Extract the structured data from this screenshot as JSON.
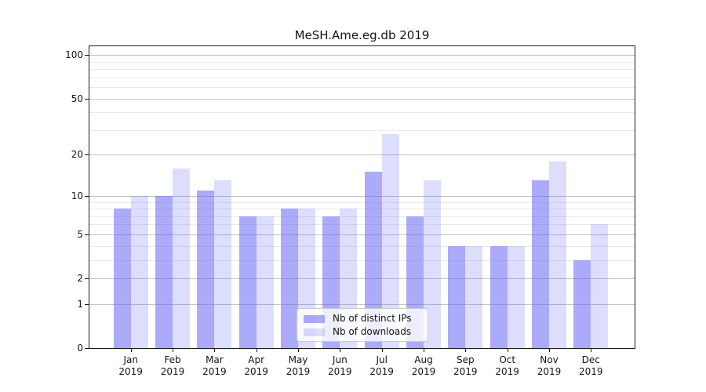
{
  "title": "MeSH.Ame.eg.db 2019",
  "colors": {
    "bar_distinct_ips": "rgba(102,102,245,0.55)",
    "bar_downloads": "rgba(102,102,245,0.22)",
    "grid_major": "#c3c3c3",
    "grid_minor": "#eaeaea",
    "axis": "#1a1a1a",
    "text": "#141414"
  },
  "chart_data": {
    "type": "bar",
    "title": "MeSH.Ame.eg.db 2019",
    "categories": [
      "Jan 2019",
      "Feb 2019",
      "Mar 2019",
      "Apr 2019",
      "May 2019",
      "Jun 2019",
      "Jul 2019",
      "Aug 2019",
      "Sep 2019",
      "Oct 2019",
      "Nov 2019",
      "Dec 2019"
    ],
    "series": [
      {
        "name": "Nb of distinct IPs",
        "values": [
          8,
          10,
          11,
          7,
          8,
          7,
          15,
          7,
          4,
          4,
          13,
          3
        ]
      },
      {
        "name": "Nb of downloads",
        "values": [
          10,
          16,
          13,
          7,
          8,
          8,
          28,
          13,
          4,
          4,
          18,
          6
        ]
      }
    ],
    "xlabel": "",
    "ylabel": "",
    "yscale": "log1p",
    "ylim": [
      0,
      118
    ],
    "y_ticks": [
      0,
      1,
      2,
      5,
      10,
      20,
      50,
      100
    ],
    "y_minor_ticks": [
      3,
      4,
      6,
      7,
      8,
      9,
      30,
      40,
      60,
      70,
      80,
      90
    ],
    "grid": "on",
    "legend_position": "lower center"
  }
}
